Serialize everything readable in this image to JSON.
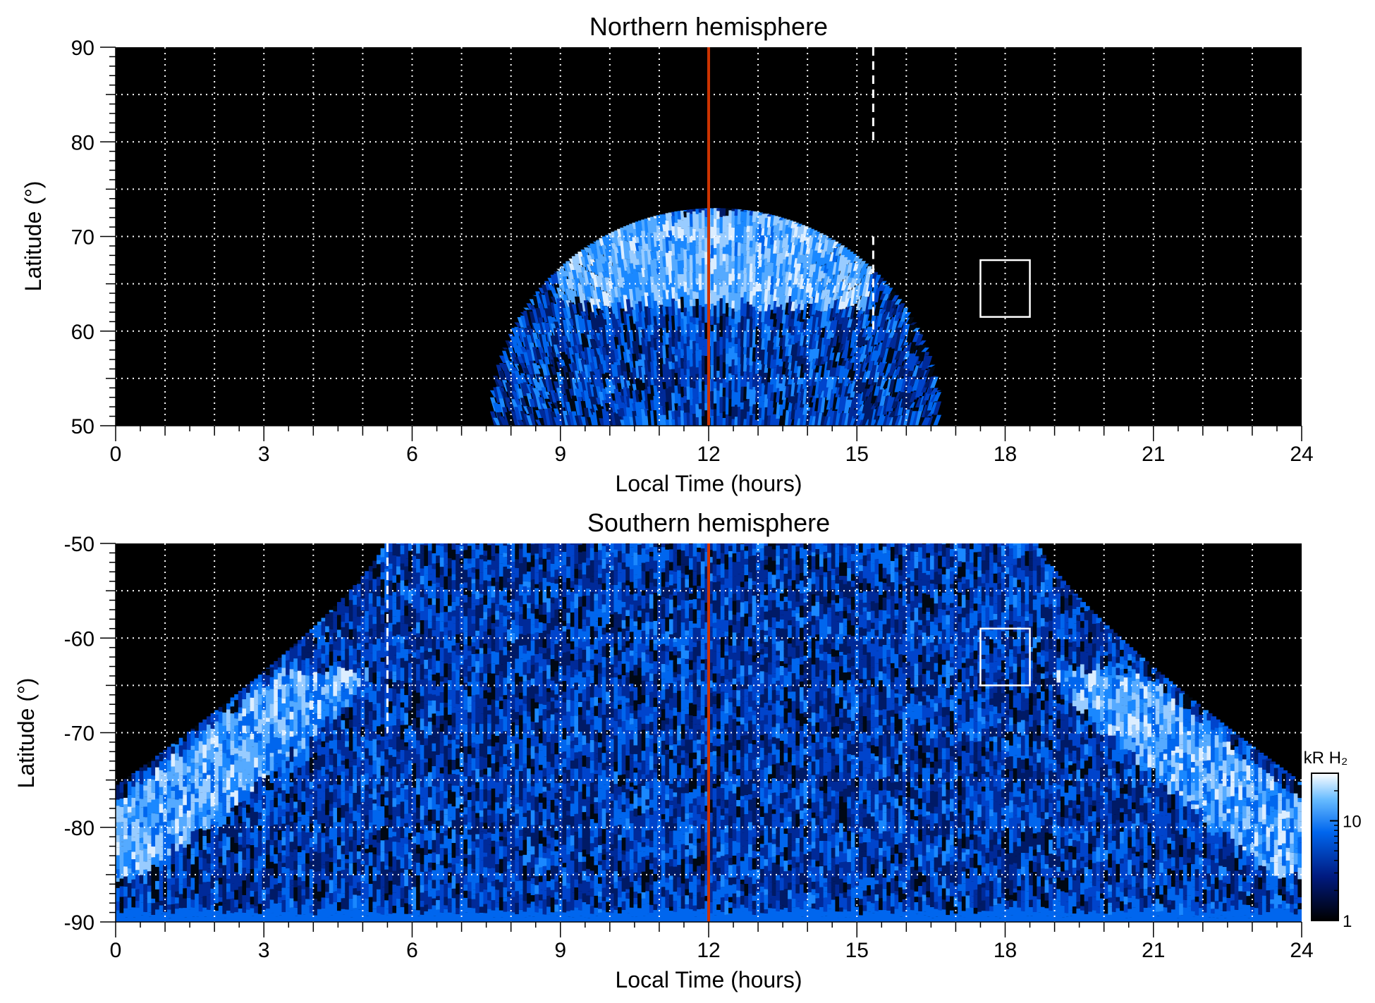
{
  "chart_data": [
    {
      "type": "heatmap",
      "title": "Northern hemisphere",
      "xlabel": "Local Time (hours)",
      "ylabel": "Latitude (°)",
      "xlim": [
        0,
        24
      ],
      "ylim": [
        50,
        90
      ],
      "x_ticks": [
        "0",
        "3",
        "6",
        "9",
        "12",
        "15",
        "18",
        "21",
        "24"
      ],
      "y_ticks": [
        "50",
        "60",
        "70",
        "80",
        "90"
      ],
      "grid": true,
      "noon_line_lt": 12,
      "noon_line_color": "#cc3300",
      "dashed_line": {
        "lt": 15.33,
        "segments": [
          [
            80,
            90
          ],
          [
            60,
            70
          ]
        ]
      },
      "box": {
        "lt": [
          17.5,
          18.5
        ],
        "lat": [
          61.5,
          67.5
        ]
      },
      "emission_region": {
        "lt_range": [
          7.6,
          16.6
        ],
        "lat_edge_at_noon": 73,
        "bright_band_lat": [
          62,
          72
        ]
      }
    },
    {
      "type": "heatmap",
      "title": "Southern hemisphere",
      "xlabel": "Local Time (hours)",
      "ylabel": "Latitude (°)",
      "xlim": [
        0,
        24
      ],
      "ylim": [
        -90,
        -50
      ],
      "x_ticks": [
        "0",
        "3",
        "6",
        "9",
        "12",
        "15",
        "18",
        "21",
        "24"
      ],
      "y_ticks": [
        "-90",
        "-80",
        "-70",
        "-60",
        "-50"
      ],
      "grid": true,
      "noon_line_lt": 12,
      "noon_line_color": "#cc3300",
      "dashed_line": {
        "lt": 5.5,
        "segments": [
          [
            -70,
            -50
          ]
        ]
      },
      "box": {
        "lt": [
          17.5,
          18.5
        ],
        "lat": [
          -65,
          -59
        ]
      },
      "emission_region": {
        "lt_range": [
          0,
          24
        ],
        "lat_edge_at_noon": -50,
        "lat_edge_at_midnight": -75.5,
        "bright_band_lat": [
          -86,
          -74
        ]
      },
      "colorbar": {
        "title": "kR H₂",
        "ticks": [
          "1",
          "10"
        ],
        "scale": "log",
        "range": [
          1,
          30
        ],
        "colors": [
          "#000000",
          "#001a80",
          "#0066ee",
          "#66bbff",
          "#ffffff"
        ]
      }
    }
  ]
}
